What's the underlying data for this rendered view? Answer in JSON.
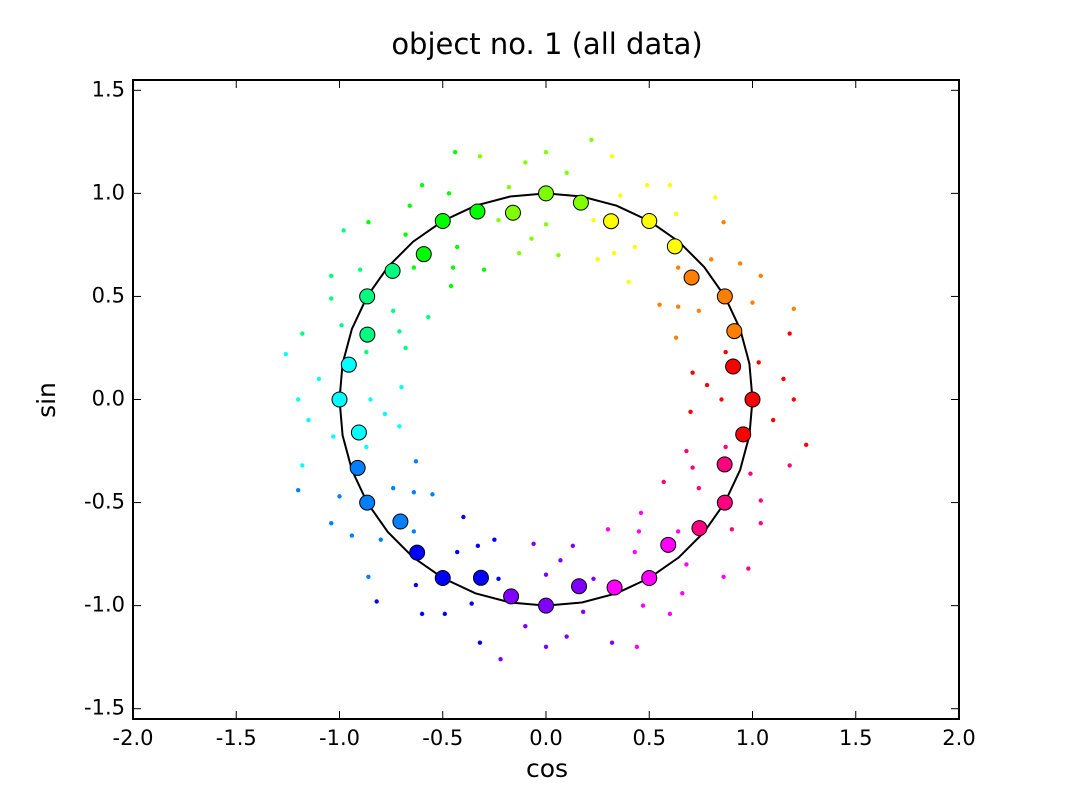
{
  "chart_data": {
    "type": "scatter",
    "title": "object no. 1 (all data)",
    "xlabel": "cos",
    "ylabel": "sin",
    "xlim": [
      -2,
      2
    ],
    "ylim": [
      -1.55,
      1.55
    ],
    "xticks": [
      {
        "value": -2,
        "label": "-2.0"
      },
      -1.5,
      {
        "value": -1,
        "label": "-1.0"
      },
      -0.5,
      {
        "value": 0,
        "label": "0.0"
      },
      0.5,
      {
        "value": 1,
        "label": "1.0"
      },
      1.5,
      {
        "value": 2,
        "label": "2.0"
      }
    ],
    "yticks": [
      -1.5,
      {
        "value": -1,
        "label": "-1.0"
      },
      -0.5,
      {
        "value": 0,
        "label": "0.0"
      },
      0.5,
      {
        "value": 1,
        "label": "1.0"
      },
      1.5
    ],
    "grid": false,
    "series": [
      {
        "color": "#ff0000",
        "marker": "dot",
        "x": [
          1.26,
          0.94,
          0.7,
          1.1,
          1.2,
          0.85,
          0.78,
          1.15,
          1.03,
          0.71,
          0.87,
          1.18
        ],
        "values": [
          -0.22,
          -0.17,
          -0.06,
          -0.1,
          0,
          0,
          0.07,
          0.1,
          0.18,
          0.13,
          0.23,
          0.32
        ]
      },
      {
        "color": "#ff8000",
        "marker": "dot",
        "x": [
          1.2,
          0.89,
          0.63,
          1.0,
          1.04,
          0.74,
          0.64,
          0.94,
          0.8,
          0.55,
          0.64,
          0.86
        ],
        "values": [
          0.44,
          0.32,
          0.3,
          0.47,
          0.6,
          0.43,
          0.45,
          0.66,
          0.68,
          0.46,
          0.64,
          0.86
        ]
      },
      {
        "color": "#ffff00",
        "marker": "dot",
        "x": [
          0.82,
          0.61,
          0.4,
          0.63,
          0.6,
          0.43,
          0.33,
          0.49,
          0.36,
          0.25,
          0.23,
          0.32
        ],
        "values": [
          0.98,
          0.73,
          0.57,
          0.9,
          1.04,
          0.74,
          0.71,
          1.04,
          0.99,
          0.68,
          0.87,
          1.18
        ]
      },
      {
        "color": "#80ff00",
        "marker": "dot",
        "x": [
          0.22,
          0.17,
          0.06,
          0.1,
          0,
          0,
          -0.07,
          -0.1,
          -0.18,
          -0.13,
          -0.23,
          -0.32
        ],
        "values": [
          1.26,
          0.94,
          0.7,
          1.1,
          1.2,
          0.85,
          0.78,
          1.15,
          1.03,
          0.71,
          0.87,
          1.18
        ]
      },
      {
        "color": "#00ff00",
        "marker": "dot",
        "x": [
          -0.44,
          -0.32,
          -0.3,
          -0.47,
          -0.6,
          -0.43,
          -0.45,
          -0.66,
          -0.68,
          -0.46,
          -0.64,
          -0.86
        ],
        "values": [
          1.2,
          0.89,
          0.63,
          1.0,
          1.04,
          0.74,
          0.64,
          0.94,
          0.8,
          0.55,
          0.64,
          0.86
        ]
      },
      {
        "color": "#00ff80",
        "marker": "dot",
        "x": [
          -0.98,
          -0.73,
          -0.57,
          -0.9,
          -1.04,
          -0.74,
          -0.71,
          -1.04,
          -0.99,
          -0.68,
          -0.87,
          -1.18
        ],
        "values": [
          0.82,
          0.61,
          0.4,
          0.63,
          0.6,
          0.43,
          0.33,
          0.49,
          0.36,
          0.25,
          0.23,
          0.32
        ]
      },
      {
        "color": "#00ffff",
        "marker": "dot",
        "x": [
          -1.26,
          -0.94,
          -0.7,
          -1.1,
          -1.2,
          -0.85,
          -0.78,
          -1.15,
          -1.03,
          -0.71,
          -0.87,
          -1.18
        ],
        "values": [
          0.22,
          0.17,
          0.06,
          0.1,
          0,
          0,
          -0.07,
          -0.1,
          -0.18,
          -0.13,
          -0.23,
          -0.32
        ]
      },
      {
        "color": "#0080ff",
        "marker": "dot",
        "x": [
          -1.2,
          -0.89,
          -0.63,
          -1.0,
          -1.04,
          -0.74,
          -0.64,
          -0.94,
          -0.8,
          -0.55,
          -0.64,
          -0.86
        ],
        "values": [
          -0.44,
          -0.32,
          -0.3,
          -0.47,
          -0.6,
          -0.43,
          -0.45,
          -0.66,
          -0.68,
          -0.46,
          -0.64,
          -0.86
        ]
      },
      {
        "color": "#0000ff",
        "marker": "dot",
        "x": [
          -0.82,
          -0.61,
          -0.4,
          -0.63,
          -0.6,
          -0.43,
          -0.33,
          -0.49,
          -0.36,
          -0.25,
          -0.23,
          -0.32
        ],
        "values": [
          -0.98,
          -0.73,
          -0.57,
          -0.9,
          -1.04,
          -0.74,
          -0.71,
          -1.04,
          -0.99,
          -0.68,
          -0.87,
          -1.18
        ]
      },
      {
        "color": "#8000ff",
        "marker": "dot",
        "x": [
          -0.22,
          -0.17,
          -0.06,
          -0.1,
          0,
          0,
          0.07,
          0.1,
          0.18,
          0.13,
          0.23,
          0.32
        ],
        "values": [
          -1.26,
          -0.94,
          -0.7,
          -1.1,
          -1.2,
          -0.85,
          -0.78,
          -1.15,
          -1.03,
          -0.71,
          -0.87,
          -1.18
        ]
      },
      {
        "color": "#ff00ff",
        "marker": "dot",
        "x": [
          0.44,
          0.32,
          0.3,
          0.47,
          0.6,
          0.43,
          0.45,
          0.66,
          0.68,
          0.46,
          0.64,
          0.86
        ],
        "values": [
          -1.2,
          -0.89,
          -0.63,
          -1.0,
          -1.04,
          -0.74,
          -0.64,
          -0.94,
          -0.8,
          -0.55,
          -0.64,
          -0.86
        ]
      },
      {
        "color": "#ff0080",
        "marker": "dot",
        "x": [
          0.98,
          0.73,
          0.57,
          0.9,
          1.04,
          0.74,
          0.71,
          1.04,
          0.99,
          0.68,
          0.87,
          1.18
        ],
        "values": [
          -0.82,
          -0.61,
          -0.4,
          -0.63,
          -0.6,
          -0.43,
          -0.33,
          -0.49,
          -0.36,
          -0.25,
          -0.23,
          -0.32
        ]
      },
      {
        "color": "#000000",
        "marker": "none",
        "line": true,
        "x": [
          1,
          0.985,
          0.94,
          0.866,
          0.766,
          0.643,
          0.5,
          0.342,
          0.174,
          0,
          -0.174,
          -0.342,
          -0.5,
          -0.643,
          -0.766,
          -0.866,
          -0.94,
          -0.985,
          -1,
          -0.985,
          -0.94,
          -0.866,
          -0.766,
          -0.643,
          -0.5,
          -0.342,
          -0.174,
          0,
          0.174,
          0.342,
          0.5,
          0.643,
          0.766,
          0.866,
          0.94,
          0.985,
          1
        ],
        "values": [
          0,
          0.174,
          0.342,
          0.5,
          0.643,
          0.766,
          0.866,
          0.94,
          0.985,
          1,
          0.985,
          0.94,
          0.866,
          0.766,
          0.643,
          0.5,
          0.342,
          0.174,
          0,
          -0.174,
          -0.342,
          -0.5,
          -0.643,
          -0.766,
          -0.866,
          -0.94,
          -0.985,
          -1,
          -0.985,
          -0.94,
          -0.866,
          -0.766,
          -0.643,
          -0.5,
          -0.342,
          -0.174,
          0
        ]
      },
      {
        "color": "#ff0000",
        "marker": "circle",
        "x": [
          0.955,
          1.0,
          0.906
        ],
        "values": [
          -0.169,
          0,
          0.16
        ]
      },
      {
        "color": "#ff8000",
        "marker": "circle",
        "x": [
          0.912,
          0.866,
          0.705
        ],
        "values": [
          0.332,
          0.5,
          0.592
        ]
      },
      {
        "color": "#ffff00",
        "marker": "circle",
        "x": [
          0.624,
          0.5,
          0.315
        ],
        "values": [
          0.743,
          0.866,
          0.865
        ]
      },
      {
        "color": "#80ff00",
        "marker": "circle",
        "x": [
          0.169,
          0,
          -0.16
        ],
        "values": [
          0.955,
          1,
          0.906
        ]
      },
      {
        "color": "#00ff00",
        "marker": "circle",
        "x": [
          -0.332,
          -0.5,
          -0.592
        ],
        "values": [
          0.912,
          0.866,
          0.705
        ]
      },
      {
        "color": "#00ff80",
        "marker": "circle",
        "x": [
          -0.743,
          -0.866,
          -0.865
        ],
        "values": [
          0.624,
          0.5,
          0.315
        ]
      },
      {
        "color": "#00ffff",
        "marker": "circle",
        "x": [
          -0.955,
          -1,
          -0.906
        ],
        "values": [
          0.169,
          0,
          -0.16
        ]
      },
      {
        "color": "#0080ff",
        "marker": "circle",
        "x": [
          -0.912,
          -0.866,
          -0.705
        ],
        "values": [
          -0.332,
          -0.5,
          -0.592
        ]
      },
      {
        "color": "#0000ff",
        "marker": "circle",
        "x": [
          -0.624,
          -0.5,
          -0.315
        ],
        "values": [
          -0.743,
          -0.866,
          -0.865
        ]
      },
      {
        "color": "#8000ff",
        "marker": "circle",
        "x": [
          -0.169,
          0,
          0.16
        ],
        "values": [
          -0.955,
          -1,
          -0.906
        ]
      },
      {
        "color": "#ff00ff",
        "marker": "circle",
        "x": [
          0.332,
          0.5,
          0.592
        ],
        "values": [
          -0.912,
          -0.866,
          -0.705
        ]
      },
      {
        "color": "#ff0080",
        "marker": "circle",
        "x": [
          0.743,
          0.866,
          0.865
        ],
        "values": [
          -0.624,
          -0.5,
          -0.315
        ]
      }
    ]
  }
}
